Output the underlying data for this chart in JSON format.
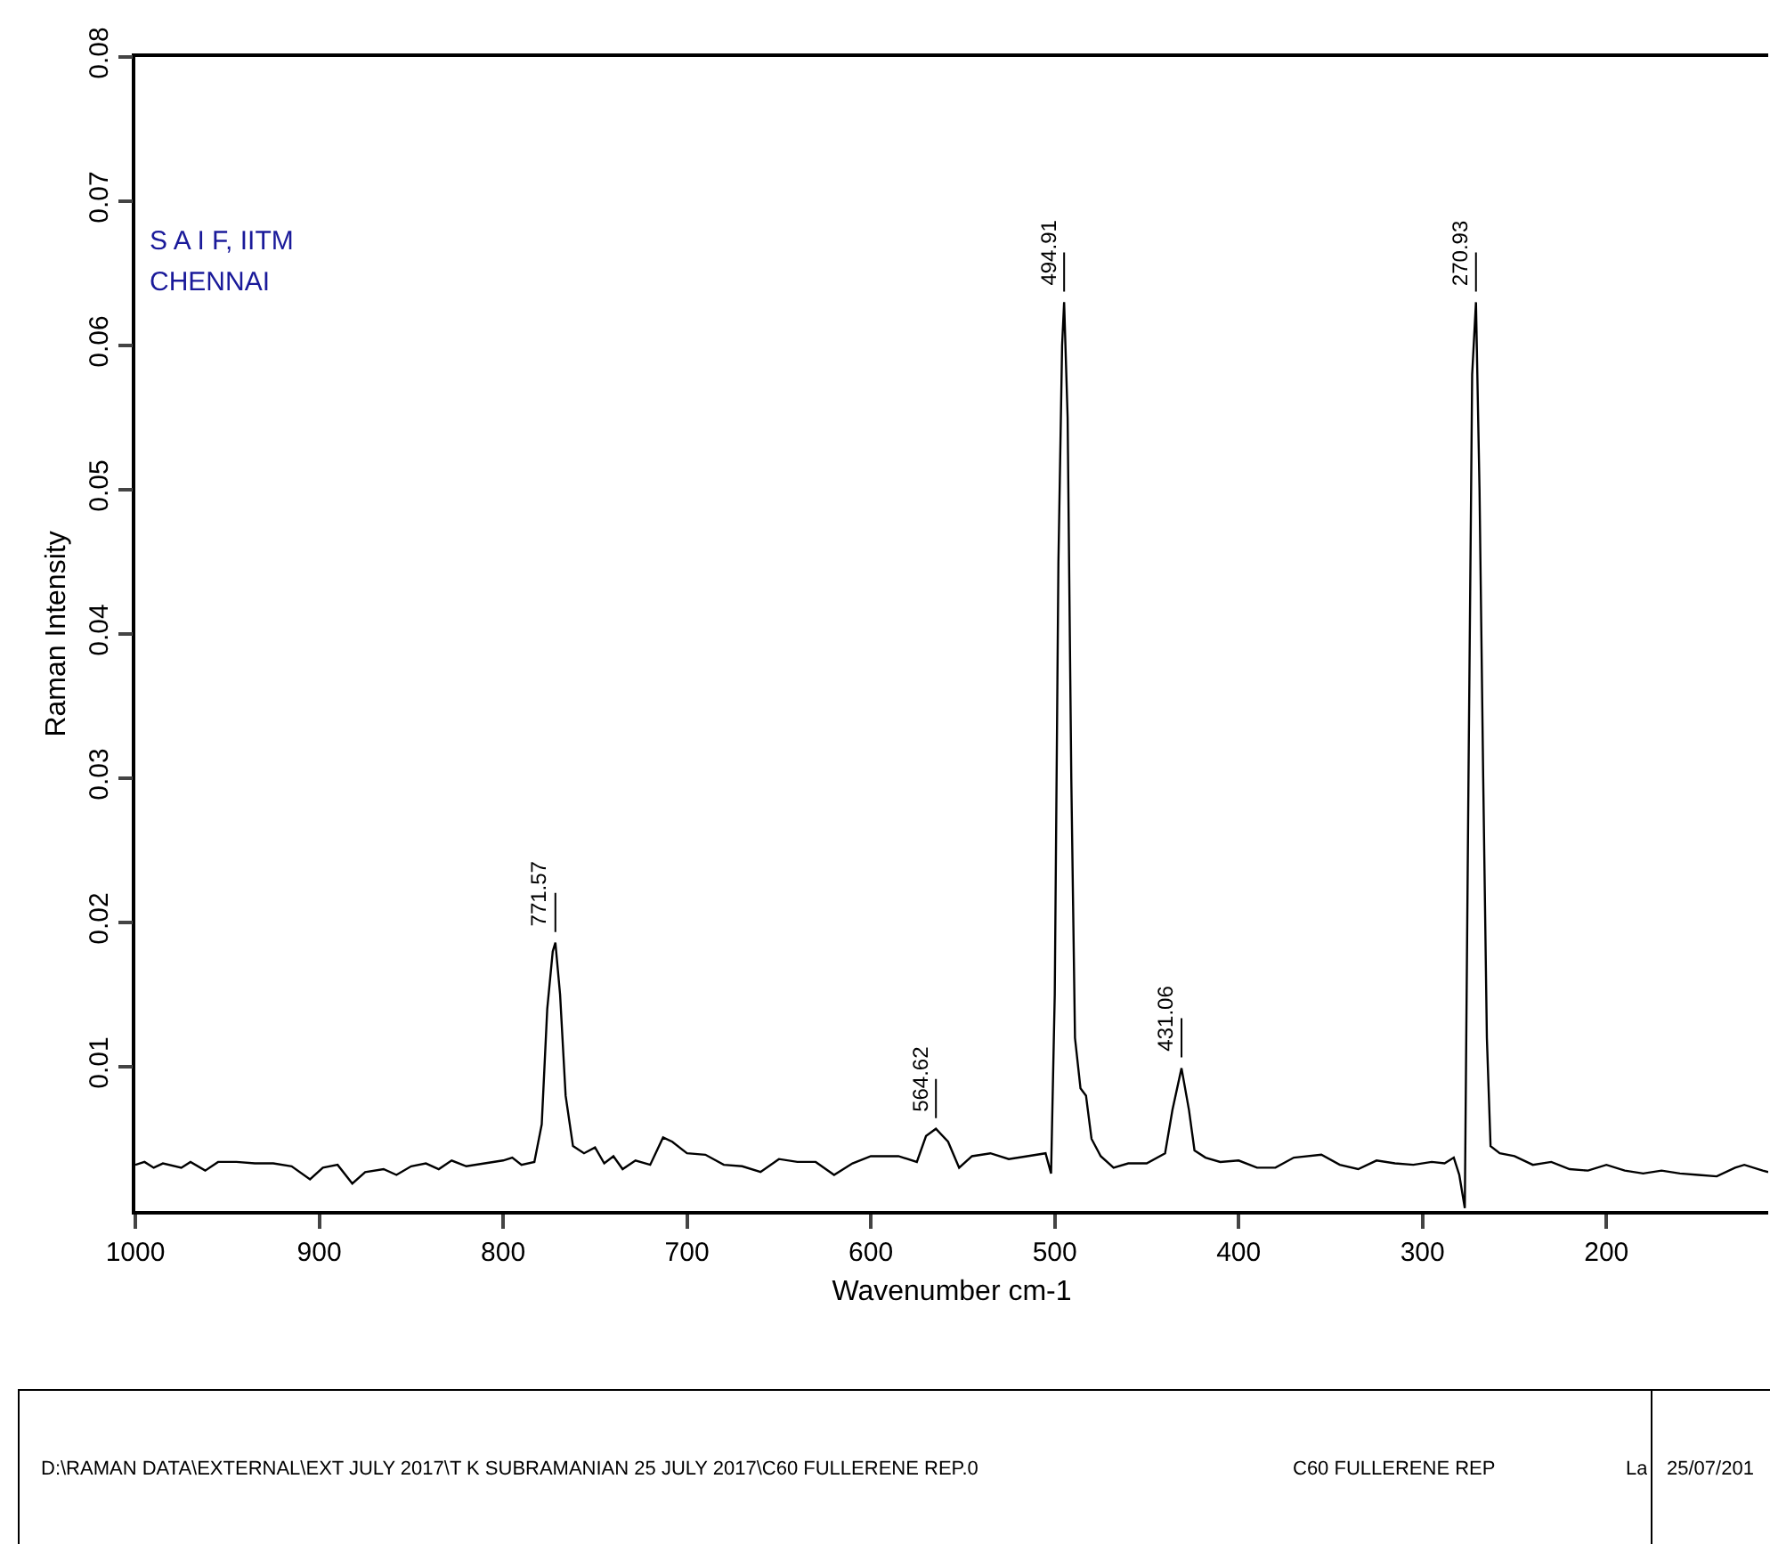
{
  "chart_data": {
    "type": "line",
    "xlabel": "Wavenumber cm-1",
    "ylabel": "Raman Intensity",
    "xlim": [
      1000,
      112
    ],
    "xticks": [
      1000,
      900,
      800,
      700,
      600,
      500,
      400,
      300,
      200
    ],
    "ylim": [
      0,
      0.08
    ],
    "yticks": [
      0.01,
      0.02,
      0.03,
      0.04,
      0.05,
      0.06,
      0.07,
      0.08
    ],
    "grid": false,
    "marker": "none",
    "line_style": "solid",
    "series": [
      {
        "color": "#000000",
        "x": [
          1000,
          995,
          990,
          985,
          975,
          970,
          962,
          955,
          945,
          935,
          925,
          915,
          905,
          898,
          890,
          882,
          875,
          865,
          858,
          850,
          842,
          835,
          828,
          820,
          810,
          800,
          795,
          790,
          783,
          779,
          776,
          773,
          771.57,
          769,
          766,
          762,
          756,
          750,
          745,
          740,
          735,
          728,
          720,
          713,
          708,
          700,
          690,
          680,
          670,
          660,
          650,
          640,
          630,
          620,
          610,
          600,
          585,
          575,
          570,
          564.62,
          558,
          552,
          545,
          535,
          525,
          515,
          505,
          502,
          500,
          498,
          496,
          494.91,
          493,
          491,
          489,
          486,
          483,
          480,
          475,
          468,
          460,
          450,
          440,
          436,
          431.06,
          427,
          424,
          418,
          410,
          400,
          390,
          380,
          370,
          355,
          345,
          335,
          325,
          315,
          305,
          295,
          288,
          283,
          280,
          277,
          275,
          273,
          270.93,
          269,
          267,
          265,
          263,
          258,
          250,
          240,
          230,
          220,
          210,
          200,
          190,
          180,
          170,
          160,
          150,
          140,
          130,
          125,
          115,
          112
        ],
        "values": [
          0.0032,
          0.0034,
          0.003,
          0.0033,
          0.003,
          0.0034,
          0.0028,
          0.0034,
          0.0034,
          0.0033,
          0.0033,
          0.0031,
          0.0022,
          0.003,
          0.0032,
          0.0019,
          0.0027,
          0.0029,
          0.0025,
          0.0031,
          0.0033,
          0.0029,
          0.0035,
          0.0031,
          0.0033,
          0.0035,
          0.0037,
          0.0032,
          0.0034,
          0.006,
          0.014,
          0.018,
          0.0186,
          0.015,
          0.008,
          0.0045,
          0.004,
          0.0044,
          0.0033,
          0.0038,
          0.0029,
          0.0035,
          0.0032,
          0.0051,
          0.0048,
          0.004,
          0.0039,
          0.0032,
          0.0031,
          0.0027,
          0.0036,
          0.0034,
          0.0034,
          0.0025,
          0.0033,
          0.0038,
          0.0038,
          0.0034,
          0.0052,
          0.0057,
          0.0048,
          0.003,
          0.0038,
          0.004,
          0.0036,
          0.0038,
          0.004,
          0.0026,
          0.015,
          0.045,
          0.06,
          0.063,
          0.055,
          0.03,
          0.012,
          0.0085,
          0.008,
          0.005,
          0.0038,
          0.003,
          0.0033,
          0.0033,
          0.004,
          0.007,
          0.0099,
          0.007,
          0.0042,
          0.0037,
          0.0034,
          0.0035,
          0.003,
          0.003,
          0.0037,
          0.0039,
          0.0032,
          0.0029,
          0.0035,
          0.0033,
          0.0032,
          0.0034,
          0.0033,
          0.0037,
          0.0025,
          0.0002,
          0.03,
          0.058,
          0.063,
          0.05,
          0.03,
          0.012,
          0.0045,
          0.004,
          0.0038,
          0.0032,
          0.0034,
          0.0029,
          0.0028,
          0.0032,
          0.0028,
          0.0026,
          0.0028,
          0.0026,
          0.0025,
          0.0024,
          0.003,
          0.0032,
          0.0028,
          0.0027
        ]
      }
    ],
    "annotations": [
      {
        "text": "771.57",
        "x": 771.57,
        "y": 0.0186
      },
      {
        "text": "564.62",
        "x": 564.62,
        "y": 0.0057
      },
      {
        "text": "494.91",
        "x": 494.91,
        "y": 0.063
      },
      {
        "text": "431.06",
        "x": 431.06,
        "y": 0.0099
      },
      {
        "text": "270.93",
        "x": 270.93,
        "y": 0.063
      },
      "S A I F, IITM",
      "CHENNAI",
      "D:\\RAMAN DATA\\EXTERNAL\\EXT JULY 2017\\T K SUBRAMANIAN 25 JULY 2017\\C60 FULLERENE REP.0",
      "C60 FULLERENE REP",
      "La",
      "25/07/201"
    ]
  }
}
